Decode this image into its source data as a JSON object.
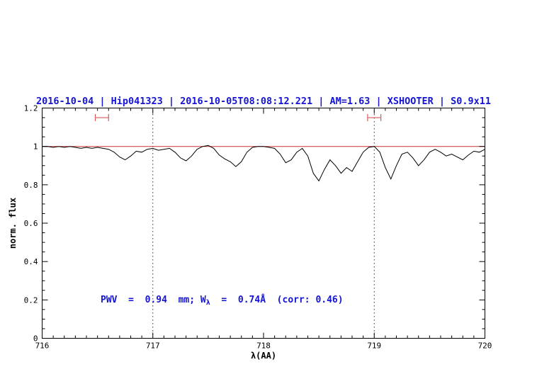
{
  "title": {
    "text": "2016-10-04 | Hip041323 | 2016-10-05T08:08:12.221 | AM=1.63 | XSHOOTER | S0.9x11"
  },
  "annotation": {
    "prefix": "PWV  =  0.94  mm; W",
    "sub": "λ",
    "suffix": "  =  0.74Å  (corr: 0.46)"
  },
  "colors": {
    "title": "#1414d2",
    "annotation": "#1414d2",
    "spectrum": "#000000",
    "continuum": "#c83232",
    "marker": "#d85a5a",
    "vline": "#2a2a2a",
    "axis": "#000000"
  },
  "chart_data": {
    "type": "line",
    "title": "2016-10-04 | Hip041323 | 2016-10-05T08:08:12.221 | AM=1.63 | XSHOOTER | S0.9x11",
    "xlabel": "λ(AA)",
    "ylabel": "norm. flux",
    "xlim": [
      716,
      720
    ],
    "ylim": [
      0,
      1.2
    ],
    "grid": false,
    "legend": "none",
    "x_ticks": [
      716,
      717,
      718,
      719,
      720
    ],
    "x_tick_labels": [
      "716",
      "717",
      "718",
      "719",
      "720"
    ],
    "y_ticks": [
      0,
      0.2,
      0.4,
      0.6,
      0.8,
      1,
      1.2
    ],
    "y_tick_labels": [
      "0",
      "0.2",
      "0.4",
      "0.6",
      "0.8",
      "1",
      "1.2"
    ],
    "x_minor_step": 0.1,
    "y_minor_step": 0.05,
    "vlines": [
      717,
      719
    ],
    "markers": [
      {
        "x1": 716.48,
        "x2": 716.6,
        "y": 1.15
      },
      {
        "x1": 718.94,
        "x2": 719.06,
        "y": 1.15
      }
    ],
    "annotation_xy": {
      "x": 716.52,
      "y": 0.2
    },
    "series": [
      {
        "name": "telluric-spectrum",
        "color": "#000000",
        "x": [
          716.0,
          716.05,
          716.1,
          716.15,
          716.2,
          716.25,
          716.3,
          716.35,
          716.4,
          716.45,
          716.5,
          716.55,
          716.6,
          716.65,
          716.7,
          716.75,
          716.8,
          716.85,
          716.9,
          716.95,
          717.0,
          717.05,
          717.1,
          717.15,
          717.2,
          717.25,
          717.3,
          717.35,
          717.4,
          717.45,
          717.5,
          717.55,
          717.6,
          717.65,
          717.7,
          717.75,
          717.8,
          717.85,
          717.9,
          717.95,
          718.0,
          718.05,
          718.1,
          718.15,
          718.2,
          718.25,
          718.3,
          718.35,
          718.4,
          718.45,
          718.5,
          718.55,
          718.6,
          718.65,
          718.7,
          718.75,
          718.8,
          718.85,
          718.9,
          718.95,
          719.0,
          719.05,
          719.1,
          719.15,
          719.2,
          719.25,
          719.3,
          719.35,
          719.4,
          719.45,
          719.5,
          719.55,
          719.6,
          719.65,
          719.7,
          719.75,
          719.8,
          719.85,
          719.9,
          719.95,
          720.0
        ],
        "y": [
          1.0,
          1.0,
          0.995,
          1.0,
          0.995,
          1.0,
          0.995,
          0.99,
          0.995,
          0.99,
          0.995,
          0.99,
          0.985,
          0.97,
          0.945,
          0.93,
          0.95,
          0.975,
          0.97,
          0.985,
          0.99,
          0.98,
          0.985,
          0.99,
          0.97,
          0.94,
          0.925,
          0.95,
          0.985,
          1.0,
          1.005,
          0.99,
          0.955,
          0.935,
          0.92,
          0.895,
          0.92,
          0.97,
          0.995,
          1.0,
          1.0,
          0.995,
          0.99,
          0.96,
          0.915,
          0.93,
          0.97,
          0.99,
          0.95,
          0.86,
          0.82,
          0.88,
          0.93,
          0.9,
          0.86,
          0.89,
          0.87,
          0.92,
          0.97,
          0.995,
          1.0,
          0.97,
          0.89,
          0.83,
          0.9,
          0.96,
          0.97,
          0.94,
          0.9,
          0.93,
          0.97,
          0.985,
          0.97,
          0.95,
          0.96,
          0.945,
          0.93,
          0.955,
          0.975,
          0.97,
          0.985
        ]
      },
      {
        "name": "continuum-fit",
        "color": "#c83232",
        "x": [
          716,
          720
        ],
        "y": [
          1,
          1
        ]
      }
    ]
  }
}
